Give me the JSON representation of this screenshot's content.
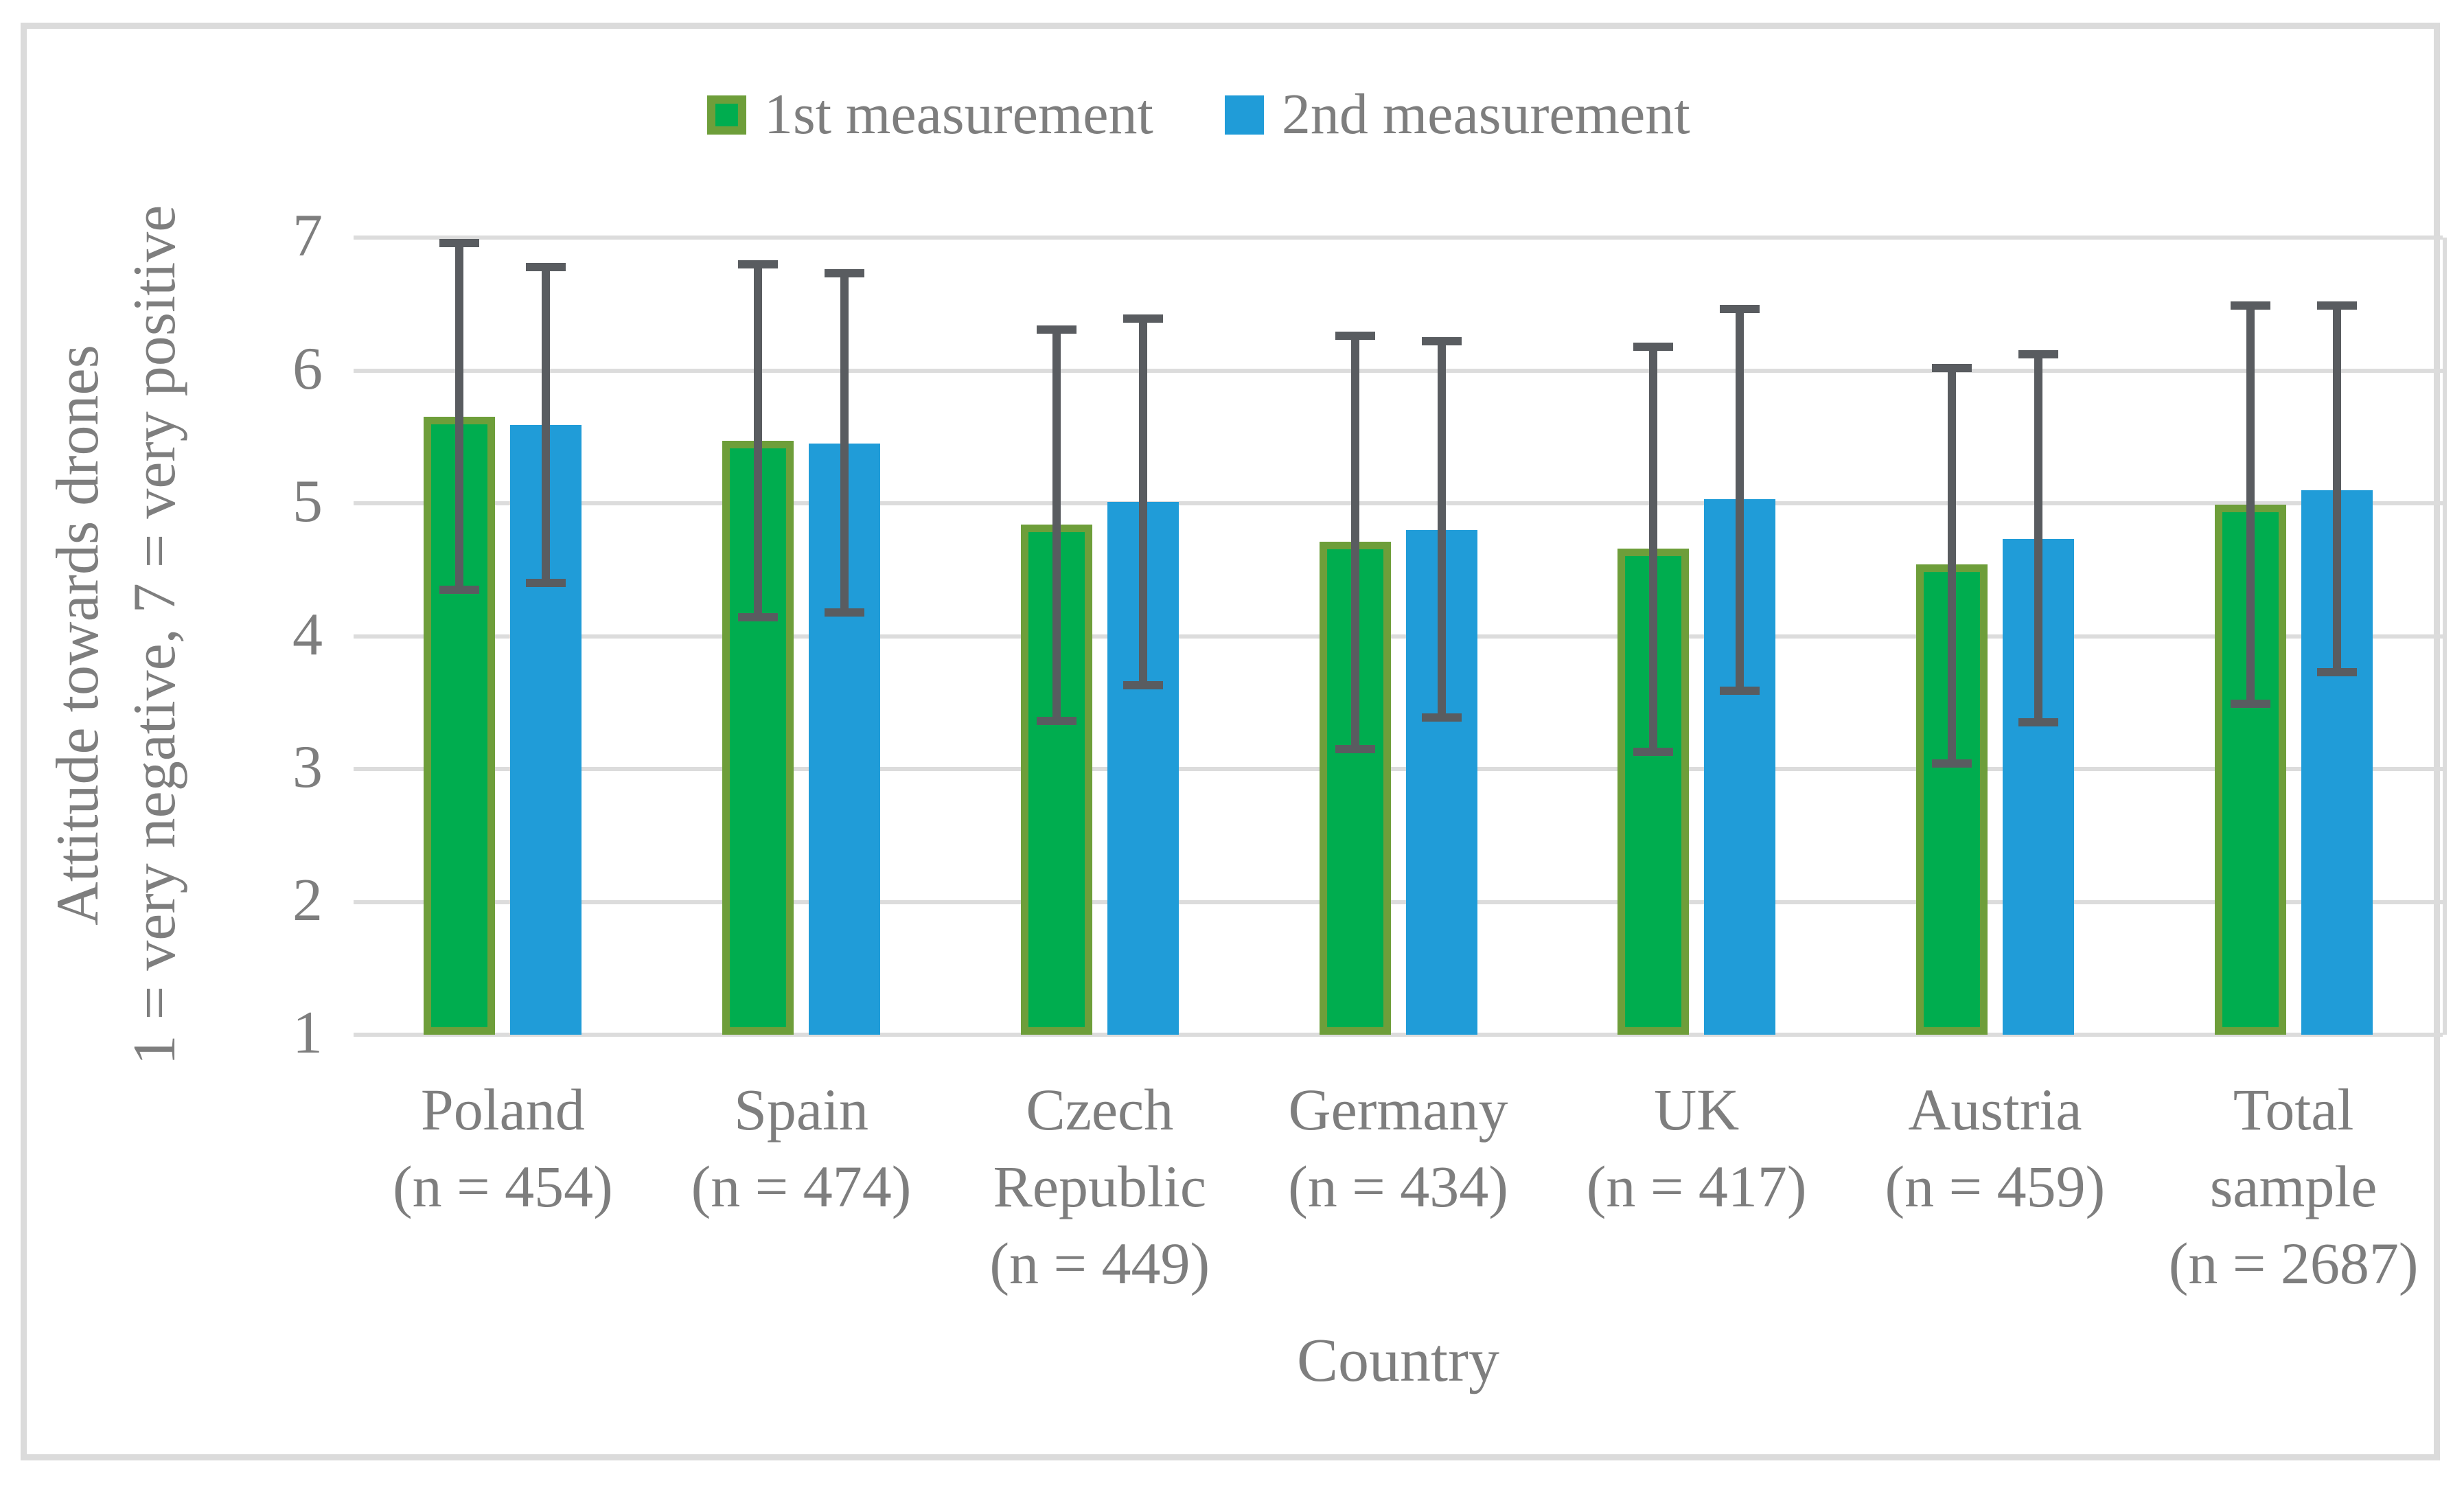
{
  "palette": {
    "series1_fill": "#00AD4F",
    "series1_border": "#6E9E3A",
    "series2_fill": "#209CD8",
    "error_bar": "#595C60",
    "gridline": "#DCDCDC",
    "frame_border": "#DBDBDB",
    "text": "#7E7E7E"
  },
  "legend": {
    "items": [
      {
        "label": "1st measurement",
        "swatch": "green-swatch"
      },
      {
        "label": "2nd measurement",
        "swatch": "blue-swatch"
      }
    ]
  },
  "y_axis": {
    "title_line1": "Attitude towards drones",
    "title_line2": "1 = very negative, 7 = very positive",
    "ticks": [
      7,
      6,
      5,
      4,
      3,
      2,
      1
    ],
    "min": 1,
    "max": 7
  },
  "x_axis": {
    "title": "Country"
  },
  "chart_data": {
    "type": "bar",
    "title": "",
    "xlabel": "Country",
    "ylabel": "Attitude towards drones 1 = very negative, 7 = very positive",
    "ylim": [
      1,
      7
    ],
    "grid": "horizontal",
    "legend_position": "top",
    "categories": [
      "Poland (n = 454)",
      "Spain (n = 474)",
      "Czech Republic (n = 449)",
      "Germany (n = 434)",
      "UK (n = 417)",
      "Austria (n = 459)",
      "Total sample (n = 2687)"
    ],
    "category_label_lines": [
      [
        "Poland",
        "(n = 454)"
      ],
      [
        "Spain",
        "(n = 474)"
      ],
      [
        "Czech",
        "Republic",
        "(n = 449)"
      ],
      [
        "Germany",
        "(n = 434)"
      ],
      [
        "UK",
        "(n = 417)"
      ],
      [
        "Austria",
        "(n = 459)"
      ],
      [
        "Total",
        "sample",
        "(n = 2687)"
      ]
    ],
    "series": [
      {
        "name": "1st measurement",
        "values": [
          5.65,
          5.47,
          4.84,
          4.71,
          4.66,
          4.54,
          4.99
        ],
        "error_low": [
          4.35,
          4.14,
          3.36,
          3.15,
          3.13,
          3.04,
          3.49
        ],
        "error_high": [
          6.96,
          6.8,
          6.31,
          6.26,
          6.18,
          6.02,
          6.49
        ]
      },
      {
        "name": "2nd measurement",
        "values": [
          5.59,
          5.45,
          5.01,
          4.8,
          5.03,
          4.73,
          5.1
        ],
        "error_low": [
          4.4,
          4.18,
          3.63,
          3.39,
          3.59,
          3.35,
          3.73
        ],
        "error_high": [
          6.78,
          6.73,
          6.39,
          6.22,
          6.46,
          6.12,
          6.49
        ]
      }
    ]
  }
}
